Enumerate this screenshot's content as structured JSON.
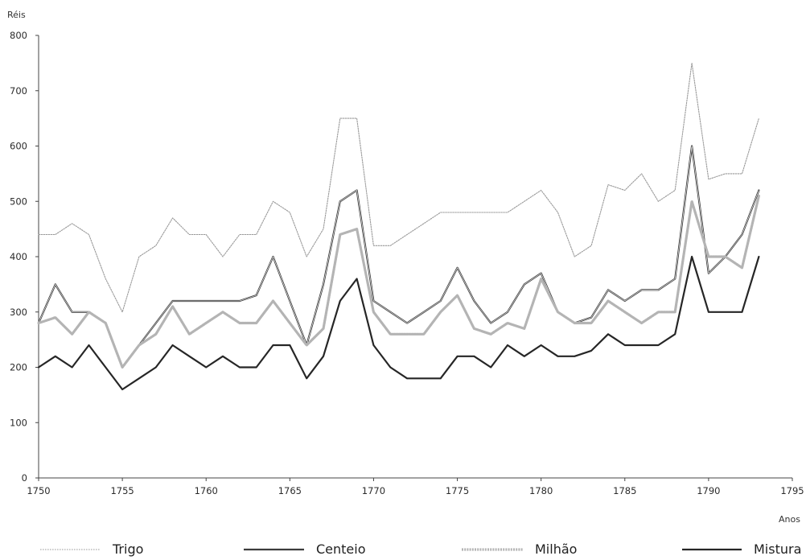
{
  "chart_data": {
    "type": "line",
    "title": "",
    "ylabel": "Réis",
    "xlabel": "Anos",
    "xlim": [
      1750,
      1795
    ],
    "ylim": [
      0,
      800
    ],
    "x_ticks": [
      "1750",
      "1755",
      "1760",
      "1765",
      "1770",
      "1775",
      "1780",
      "1785",
      "1790",
      "1795"
    ],
    "y_ticks": [
      "0",
      "100",
      "200",
      "300",
      "400",
      "500",
      "600",
      "700",
      "800"
    ],
    "grid": false,
    "legend_position": "bottom",
    "series": [
      {
        "name": "Trigo",
        "color": "#9a9a9a",
        "style": "dotted",
        "points": [
          [
            1750,
            440
          ],
          [
            1751,
            440
          ],
          [
            1752,
            460
          ],
          [
            1753,
            440
          ],
          [
            1754,
            360
          ],
          [
            1755,
            300
          ],
          [
            1756,
            400
          ],
          [
            1757,
            420
          ],
          [
            1758,
            470
          ],
          [
            1759,
            440
          ],
          [
            1760,
            440
          ],
          [
            1761,
            400
          ],
          [
            1762,
            440
          ],
          [
            1763,
            440
          ],
          [
            1764,
            500
          ],
          [
            1765,
            480
          ],
          [
            1766,
            400
          ],
          [
            1767,
            450
          ],
          [
            1768,
            650
          ],
          [
            1769,
            650
          ],
          [
            1770,
            420
          ],
          [
            1771,
            420
          ],
          [
            1772,
            440
          ],
          [
            1773,
            460
          ],
          [
            1774,
            480
          ],
          [
            1775,
            480
          ],
          [
            1776,
            480
          ],
          [
            1777,
            480
          ],
          [
            1778,
            480
          ],
          [
            1779,
            500
          ],
          [
            1780,
            520
          ],
          [
            1781,
            480
          ],
          [
            1782,
            400
          ],
          [
            1783,
            420
          ],
          [
            1784,
            530
          ],
          [
            1785,
            520
          ],
          [
            1786,
            550
          ],
          [
            1787,
            500
          ],
          [
            1788,
            520
          ],
          [
            1789,
            750
          ],
          [
            1790,
            540
          ],
          [
            1791,
            550
          ],
          [
            1792,
            550
          ],
          [
            1793,
            650
          ]
        ]
      },
      {
        "name": "Centeio",
        "color": "#3c3c3c",
        "style": "double",
        "points": [
          [
            1750,
            280
          ],
          [
            1751,
            350
          ],
          [
            1752,
            300
          ],
          [
            1753,
            300
          ],
          [
            1754,
            280
          ],
          [
            1755,
            200
          ],
          [
            1756,
            240
          ],
          [
            1757,
            280
          ],
          [
            1758,
            320
          ],
          [
            1759,
            320
          ],
          [
            1760,
            320
          ],
          [
            1761,
            320
          ],
          [
            1762,
            320
          ],
          [
            1763,
            330
          ],
          [
            1764,
            400
          ],
          [
            1765,
            320
          ],
          [
            1766,
            240
          ],
          [
            1767,
            350
          ],
          [
            1768,
            500
          ],
          [
            1769,
            520
          ],
          [
            1770,
            320
          ],
          [
            1771,
            300
          ],
          [
            1772,
            280
          ],
          [
            1773,
            300
          ],
          [
            1774,
            320
          ],
          [
            1775,
            380
          ],
          [
            1776,
            320
          ],
          [
            1777,
            280
          ],
          [
            1778,
            300
          ],
          [
            1779,
            350
          ],
          [
            1780,
            370
          ],
          [
            1781,
            300
          ],
          [
            1782,
            280
          ],
          [
            1783,
            290
          ],
          [
            1784,
            340
          ],
          [
            1785,
            320
          ],
          [
            1786,
            340
          ],
          [
            1787,
            340
          ],
          [
            1788,
            360
          ],
          [
            1789,
            600
          ],
          [
            1790,
            370
          ],
          [
            1791,
            400
          ],
          [
            1792,
            440
          ],
          [
            1793,
            520
          ]
        ]
      },
      {
        "name": "Milhão",
        "color": "#b4b4b4",
        "style": "thick-dotted",
        "points": [
          [
            1750,
            280
          ],
          [
            1751,
            290
          ],
          [
            1752,
            260
          ],
          [
            1753,
            300
          ],
          [
            1754,
            280
          ],
          [
            1755,
            200
          ],
          [
            1756,
            240
          ],
          [
            1757,
            260
          ],
          [
            1758,
            310
          ],
          [
            1759,
            260
          ],
          [
            1760,
            280
          ],
          [
            1761,
            300
          ],
          [
            1762,
            280
          ],
          [
            1763,
            280
          ],
          [
            1764,
            320
          ],
          [
            1765,
            280
          ],
          [
            1766,
            240
          ],
          [
            1767,
            270
          ],
          [
            1768,
            440
          ],
          [
            1769,
            450
          ],
          [
            1770,
            300
          ],
          [
            1771,
            260
          ],
          [
            1772,
            260
          ],
          [
            1773,
            260
          ],
          [
            1774,
            300
          ],
          [
            1775,
            330
          ],
          [
            1776,
            270
          ],
          [
            1777,
            260
          ],
          [
            1778,
            280
          ],
          [
            1779,
            270
          ],
          [
            1780,
            360
          ],
          [
            1781,
            300
          ],
          [
            1782,
            280
          ],
          [
            1783,
            280
          ],
          [
            1784,
            320
          ],
          [
            1785,
            300
          ],
          [
            1786,
            280
          ],
          [
            1787,
            300
          ],
          [
            1788,
            300
          ],
          [
            1789,
            500
          ],
          [
            1790,
            400
          ],
          [
            1791,
            400
          ],
          [
            1792,
            380
          ],
          [
            1793,
            510
          ]
        ]
      },
      {
        "name": "Mistura",
        "color": "#262626",
        "style": "solid",
        "points": [
          [
            1750,
            200
          ],
          [
            1751,
            220
          ],
          [
            1752,
            200
          ],
          [
            1753,
            240
          ],
          [
            1754,
            200
          ],
          [
            1755,
            160
          ],
          [
            1756,
            180
          ],
          [
            1757,
            200
          ],
          [
            1758,
            240
          ],
          [
            1759,
            220
          ],
          [
            1760,
            200
          ],
          [
            1761,
            220
          ],
          [
            1762,
            200
          ],
          [
            1763,
            200
          ],
          [
            1764,
            240
          ],
          [
            1765,
            240
          ],
          [
            1766,
            180
          ],
          [
            1767,
            220
          ],
          [
            1768,
            320
          ],
          [
            1769,
            360
          ],
          [
            1770,
            240
          ],
          [
            1771,
            200
          ],
          [
            1772,
            180
          ],
          [
            1773,
            180
          ],
          [
            1774,
            180
          ],
          [
            1775,
            220
          ],
          [
            1776,
            220
          ],
          [
            1777,
            200
          ],
          [
            1778,
            240
          ],
          [
            1779,
            220
          ],
          [
            1780,
            240
          ],
          [
            1781,
            220
          ],
          [
            1782,
            220
          ],
          [
            1783,
            230
          ],
          [
            1784,
            260
          ],
          [
            1785,
            240
          ],
          [
            1786,
            240
          ],
          [
            1787,
            240
          ],
          [
            1788,
            260
          ],
          [
            1789,
            400
          ],
          [
            1790,
            300
          ],
          [
            1791,
            300
          ],
          [
            1792,
            300
          ],
          [
            1793,
            400
          ]
        ]
      }
    ]
  }
}
